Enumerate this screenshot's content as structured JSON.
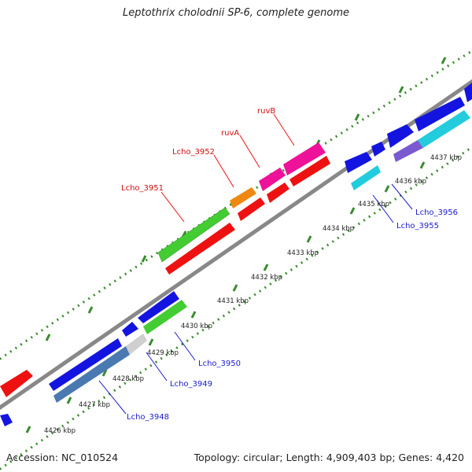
{
  "header": {
    "title": "Leptothrix cholodnii SP-6, complete genome"
  },
  "footer": {
    "accession": "Accession: NC_010524",
    "summary": "Topology: circular; Length: 4,909,403 bp; Genes: 4,420"
  },
  "colors": {
    "backbone": "#888888",
    "tick": "#3a8a2e",
    "forward_label": "#d01010",
    "reverse_label": "#1a1ad0",
    "gene_blue": "#1414e0",
    "gene_red": "#ee1111",
    "gene_green": "#44cc33",
    "gene_magenta": "#ee1199",
    "gene_orange": "#ee8811",
    "gene_cyan": "#22ccdd",
    "gene_steelblue": "#4a78b0",
    "gene_lightgray": "#cfcfcf",
    "gene_purple": "#7a5ad0"
  },
  "kbp_labels": [
    "4426 kbp",
    "4427 kbp",
    "4428 kbp",
    "4429 kbp",
    "4430 kbp",
    "4431 kbp",
    "4432 kbp",
    "4433 kbp",
    "4434 kbp",
    "4435 kbp",
    "4436 kbp",
    "4437 kbp"
  ],
  "gene_labels": {
    "forward": [
      "Lcho_3951",
      "Lcho_3952",
      "ruvA",
      "ruvB"
    ],
    "reverse": [
      "Lcho_3948",
      "Lcho_3949",
      "Lcho_3950",
      "Lcho_3955",
      "Lcho_3956"
    ]
  }
}
